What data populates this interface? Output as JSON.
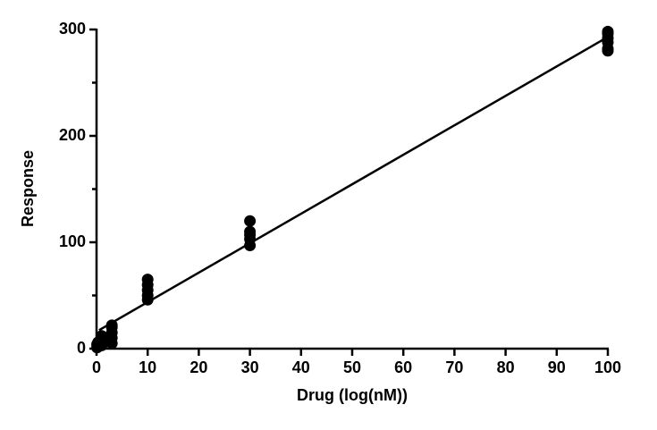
{
  "chart_data": {
    "type": "scatter",
    "x_label": "Drug (log(nM))",
    "y_label": "Response",
    "x": [
      0.1,
      0.1,
      0.3,
      0.3,
      1,
      1,
      1,
      1,
      3,
      3,
      3,
      3,
      3,
      10,
      10,
      10,
      10,
      10,
      30,
      30,
      30,
      30,
      30,
      100,
      100,
      100,
      100,
      100,
      100
    ],
    "values": [
      1,
      4,
      2,
      6,
      3,
      7,
      10,
      12,
      5,
      10,
      15,
      20,
      22,
      46,
      50,
      55,
      60,
      65,
      97,
      103,
      107,
      110,
      120,
      280,
      282,
      288,
      292,
      296,
      298
    ],
    "color": "#000000",
    "fit": {
      "x": [
        0.5,
        100
      ],
      "values": [
        17.4,
        293
      ],
      "color": "#000000"
    },
    "xlim": [
      0,
      100
    ],
    "xticks": [
      0,
      10,
      20,
      30,
      40,
      50,
      60,
      70,
      80,
      90,
      100
    ],
    "ylim": [
      0,
      300
    ],
    "yticks": [
      0,
      100,
      200,
      300
    ],
    "yminorticks": [
      50,
      150,
      250
    ],
    "grid": false
  }
}
